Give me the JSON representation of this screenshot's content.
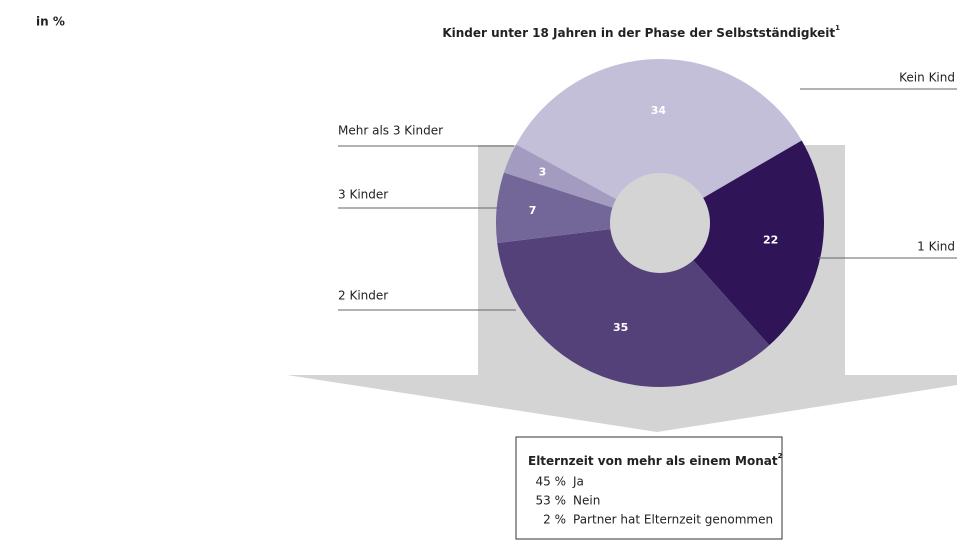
{
  "chart_data": {
    "type": "donut",
    "unit_label": "in %",
    "title": "Kinder unter 18 Jahren in der Phase der Selbstständigkeit",
    "title_footnote": "1",
    "categories": [
      "Kein Kind",
      "1 Kind",
      "2 Kinder",
      "3 Kinder",
      "Mehr als 3 Kinder"
    ],
    "values": [
      34,
      22,
      35,
      7,
      3
    ],
    "colors": [
      "#c4bfd9",
      "#2f1558",
      "#55417a",
      "#73679a",
      "#a49cc0"
    ]
  },
  "box": {
    "title": "Elternzeit von mehr als einem Monat",
    "footnote": "2",
    "rows": [
      {
        "value": "45 %",
        "label": "Ja"
      },
      {
        "value": "53 %",
        "label": "Nein"
      },
      {
        "value": "2 %",
        "label": "Partner hat Elternzeit genommen"
      }
    ]
  }
}
